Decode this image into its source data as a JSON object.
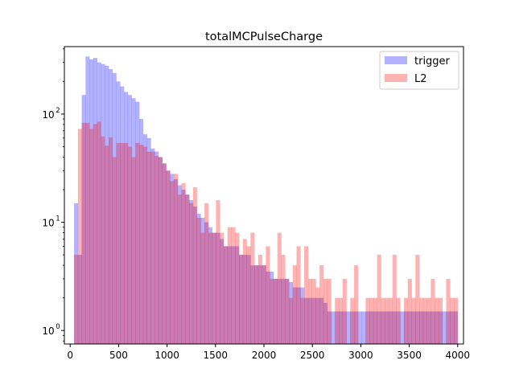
{
  "chart_data": {
    "type": "bar",
    "subtype": "overlaid-histogram",
    "title": "totalMCPulseCharge",
    "xlabel": "",
    "ylabel": "",
    "yscale": "log",
    "xlim": [
      -60,
      4060
    ],
    "ylim": [
      0.75,
      420
    ],
    "grid": false,
    "legend_position": "top-right",
    "x_ticks": [
      {
        "value": 0,
        "label": "0"
      },
      {
        "value": 500,
        "label": "500"
      },
      {
        "value": 1000,
        "label": "1000"
      },
      {
        "value": 1500,
        "label": "1500"
      },
      {
        "value": 2000,
        "label": "2000"
      },
      {
        "value": 2500,
        "label": "2500"
      },
      {
        "value": 3000,
        "label": "3000"
      },
      {
        "value": 3500,
        "label": "3500"
      },
      {
        "value": 4000,
        "label": "4000"
      }
    ],
    "y_ticks": [
      {
        "value": 1,
        "base": "10",
        "exp": "0"
      },
      {
        "value": 10,
        "base": "10",
        "exp": "1"
      },
      {
        "value": 100,
        "base": "10",
        "exp": "2"
      }
    ],
    "bin_range": [
      40,
      4000
    ],
    "bin_count": 100,
    "series": [
      {
        "name": "trigger",
        "color": "#0000ff",
        "alpha": 0.3,
        "values": [
          15,
          5,
          150,
          340,
          320,
          330,
          300,
          290,
          280,
          260,
          240,
          200,
          180,
          160,
          150,
          140,
          130,
          90,
          65,
          60,
          48,
          45,
          40,
          35,
          30,
          28,
          25,
          22,
          20,
          18,
          16,
          14,
          12,
          11,
          10,
          9,
          8,
          8,
          7,
          6,
          6,
          6,
          6,
          5,
          5,
          5,
          4,
          4,
          4,
          4,
          3.5,
          3.5,
          3,
          3,
          3,
          3,
          2.8,
          2.5,
          2.5,
          2.5,
          2,
          2,
          2,
          2,
          2,
          1.8,
          1.5,
          1.5,
          1.5,
          1.5,
          1.5,
          1.5,
          1.5,
          1.5,
          1.5,
          1.5,
          1.5,
          1.5,
          1.5,
          1.5,
          1.5,
          1.5,
          1.5,
          1.5,
          1.5,
          1.5,
          1.5,
          1.5,
          1.5,
          1.5,
          1.5,
          1.5,
          1.5,
          1.5,
          1.5,
          1.5,
          1.5,
          1.5,
          1.5,
          1.5
        ]
      },
      {
        "name": "L2",
        "color": "#ff0000",
        "alpha": 0.3,
        "values": [
          5,
          73,
          83,
          83,
          73,
          81,
          85,
          62,
          51,
          61,
          40,
          54,
          54,
          54,
          50,
          40,
          54,
          52,
          50,
          45,
          45,
          41,
          40,
          35,
          30,
          24,
          28,
          18,
          23,
          18,
          15,
          21,
          11,
          8,
          15,
          8,
          8,
          16,
          8,
          6,
          9,
          9,
          8,
          5,
          7,
          6,
          8,
          4,
          5,
          4,
          6,
          3,
          3,
          8,
          5,
          3,
          2,
          4,
          6,
          2,
          6,
          3,
          3,
          2.5,
          4,
          3,
          3,
          0,
          2,
          2,
          3,
          0,
          2,
          4,
          0,
          0,
          2,
          2,
          2,
          5,
          2,
          2,
          2,
          5,
          2,
          0,
          2,
          3,
          2,
          5,
          2,
          2,
          2,
          3,
          2,
          2,
          0,
          3,
          2,
          2
        ]
      }
    ]
  }
}
